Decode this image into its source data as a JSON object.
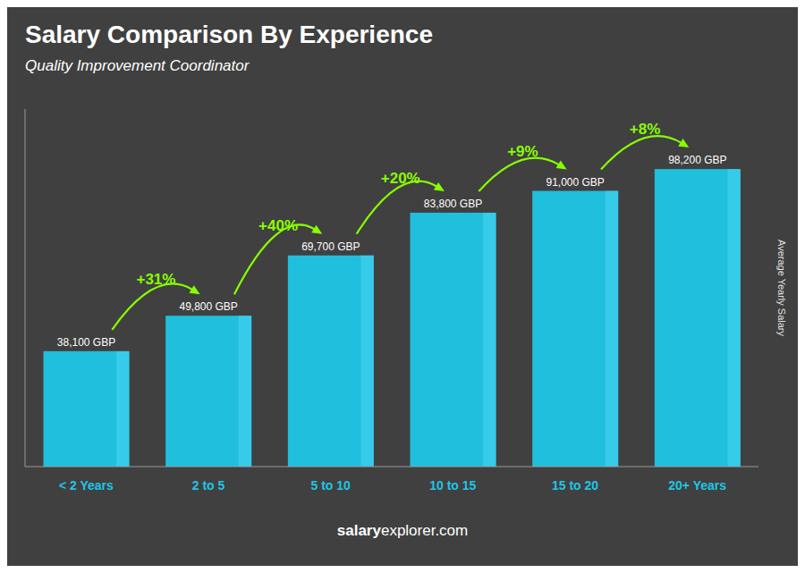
{
  "chart_data": {
    "type": "bar",
    "title": "Salary Comparison By Experience",
    "subtitle": "Quality Improvement Coordinator",
    "categories": [
      "< 2 Years",
      "2 to 5",
      "5 to 10",
      "10 to 15",
      "15 to 20",
      "20+ Years"
    ],
    "values": [
      38100,
      49800,
      69700,
      83800,
      91000,
      98200
    ],
    "value_labels": [
      "38,100 GBP",
      "49,800 GBP",
      "69,700 GBP",
      "83,800 GBP",
      "91,000 GBP",
      "98,200 GBP"
    ],
    "data_labels": true,
    "annotations": [
      "+31%",
      "+40%",
      "+20%",
      "+9%",
      "+8%"
    ],
    "ylabel": "Average Yearly Salary",
    "footer": [
      "salary",
      "explorer.com"
    ],
    "color": "#1EC6E6",
    "ylim": [
      0,
      118000
    ],
    "tick_labels": "x",
    "grid": false
  }
}
